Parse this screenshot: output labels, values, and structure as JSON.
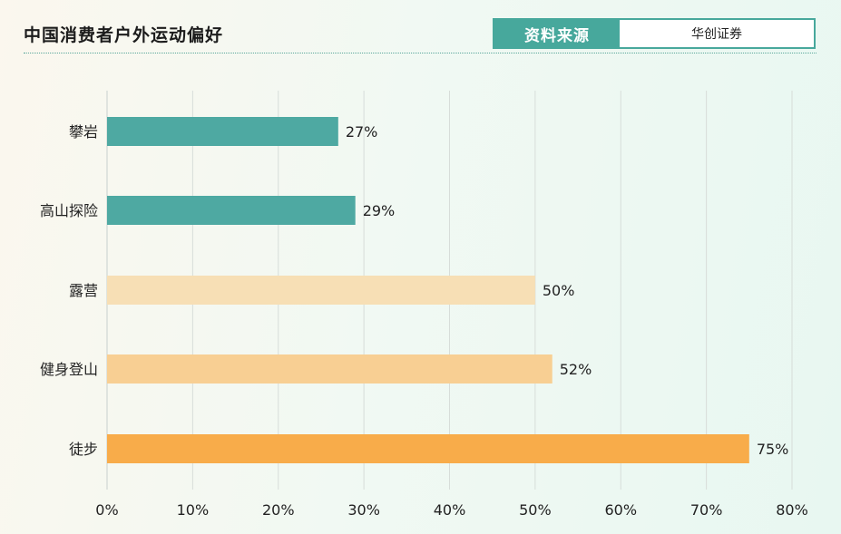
{
  "header": {
    "title": "中国消费者户外运动偏好",
    "source_label": "资料来源",
    "source_value": "华创证券"
  },
  "colors": {
    "accent": "#47a89c",
    "teal_bar": "#4ea9a2",
    "light_peach_bar": "#f7dfb5",
    "mid_peach_bar": "#f8cf93",
    "orange_bar": "#f8ac4a",
    "grid": "#d7ddd9"
  },
  "chart_data": {
    "type": "bar",
    "orientation": "horizontal",
    "categories": [
      "攀岩",
      "高山探险",
      "露营",
      "健身登山",
      "徒步"
    ],
    "values": [
      27,
      29,
      50,
      52,
      75
    ],
    "value_labels": [
      "27%",
      "29%",
      "50%",
      "52%",
      "75%"
    ],
    "bar_colors": [
      "#4ea9a2",
      "#4ea9a2",
      "#f7dfb5",
      "#f8cf93",
      "#f8ac4a"
    ],
    "xlim": [
      0,
      80
    ],
    "xticks": [
      "0%",
      "10%",
      "20%",
      "30%",
      "40%",
      "50%",
      "60%",
      "70%",
      "80%"
    ],
    "grid": true,
    "title": "中国消费者户外运动偏好",
    "xlabel": "",
    "ylabel": ""
  }
}
